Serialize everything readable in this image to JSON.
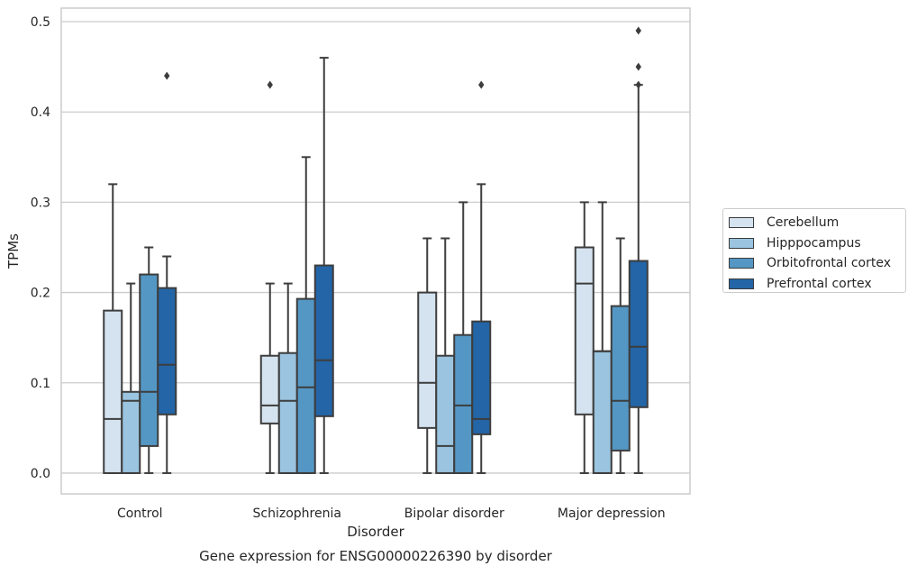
{
  "chart_data": {
    "type": "box",
    "title": "",
    "caption": "Gene expression for ENSG00000226390 by disorder",
    "xlabel": "Disorder",
    "ylabel": "TPMs",
    "ylim": [
      -0.023,
      0.515
    ],
    "yticks": [
      "0.0",
      "0.1",
      "0.2",
      "0.3",
      "0.4",
      "0.5"
    ],
    "grid": true,
    "legend_position": "right",
    "categories": [
      "Control",
      "Schizophrenia",
      "Bipolar disorder",
      "Major depression"
    ],
    "series": [
      {
        "name": "Cerebellum",
        "color": "#d5e3f0",
        "boxes": [
          {
            "min": 0.0,
            "q1": 0.0,
            "median": 0.06,
            "q3": 0.18,
            "max": 0.32,
            "outliers": []
          },
          {
            "min": 0.0,
            "q1": 0.055,
            "median": 0.075,
            "q3": 0.13,
            "max": 0.21,
            "outliers": [
              0.43
            ]
          },
          {
            "min": 0.0,
            "q1": 0.05,
            "median": 0.1,
            "q3": 0.2,
            "max": 0.26,
            "outliers": []
          },
          {
            "min": 0.0,
            "q1": 0.065,
            "median": 0.21,
            "q3": 0.25,
            "max": 0.3,
            "outliers": []
          }
        ]
      },
      {
        "name": "Hipppocampus",
        "color": "#9ac4df",
        "boxes": [
          {
            "min": 0.0,
            "q1": 0.0,
            "median": 0.08,
            "q3": 0.09,
            "max": 0.21,
            "outliers": []
          },
          {
            "min": 0.0,
            "q1": 0.0,
            "median": 0.08,
            "q3": 0.133,
            "max": 0.21,
            "outliers": []
          },
          {
            "min": 0.0,
            "q1": 0.0,
            "median": 0.03,
            "q3": 0.13,
            "max": 0.26,
            "outliers": []
          },
          {
            "min": 0.0,
            "q1": 0.0,
            "median": 0.135,
            "q3": 0.135,
            "max": 0.3,
            "outliers": []
          }
        ]
      },
      {
        "name": "Orbitofrontal cortex",
        "color": "#5497c5",
        "boxes": [
          {
            "min": 0.0,
            "q1": 0.03,
            "median": 0.09,
            "q3": 0.22,
            "max": 0.25,
            "outliers": []
          },
          {
            "min": 0.0,
            "q1": 0.0,
            "median": 0.095,
            "q3": 0.193,
            "max": 0.35,
            "outliers": []
          },
          {
            "min": 0.0,
            "q1": 0.0,
            "median": 0.075,
            "q3": 0.153,
            "max": 0.3,
            "outliers": []
          },
          {
            "min": 0.0,
            "q1": 0.025,
            "median": 0.08,
            "q3": 0.185,
            "max": 0.26,
            "outliers": []
          }
        ]
      },
      {
        "name": "Prefrontal cortex",
        "color": "#2365a6",
        "boxes": [
          {
            "min": 0.0,
            "q1": 0.065,
            "median": 0.12,
            "q3": 0.205,
            "max": 0.24,
            "outliers": [
              0.44
            ]
          },
          {
            "min": 0.0,
            "q1": 0.063,
            "median": 0.125,
            "q3": 0.23,
            "max": 0.46,
            "outliers": []
          },
          {
            "min": 0.0,
            "q1": 0.043,
            "median": 0.06,
            "q3": 0.168,
            "max": 0.32,
            "outliers": [
              0.43
            ]
          },
          {
            "min": 0.0,
            "q1": 0.073,
            "median": 0.14,
            "q3": 0.235,
            "max": 0.43,
            "outliers": [
              0.43,
              0.45,
              0.49
            ]
          }
        ]
      }
    ]
  }
}
